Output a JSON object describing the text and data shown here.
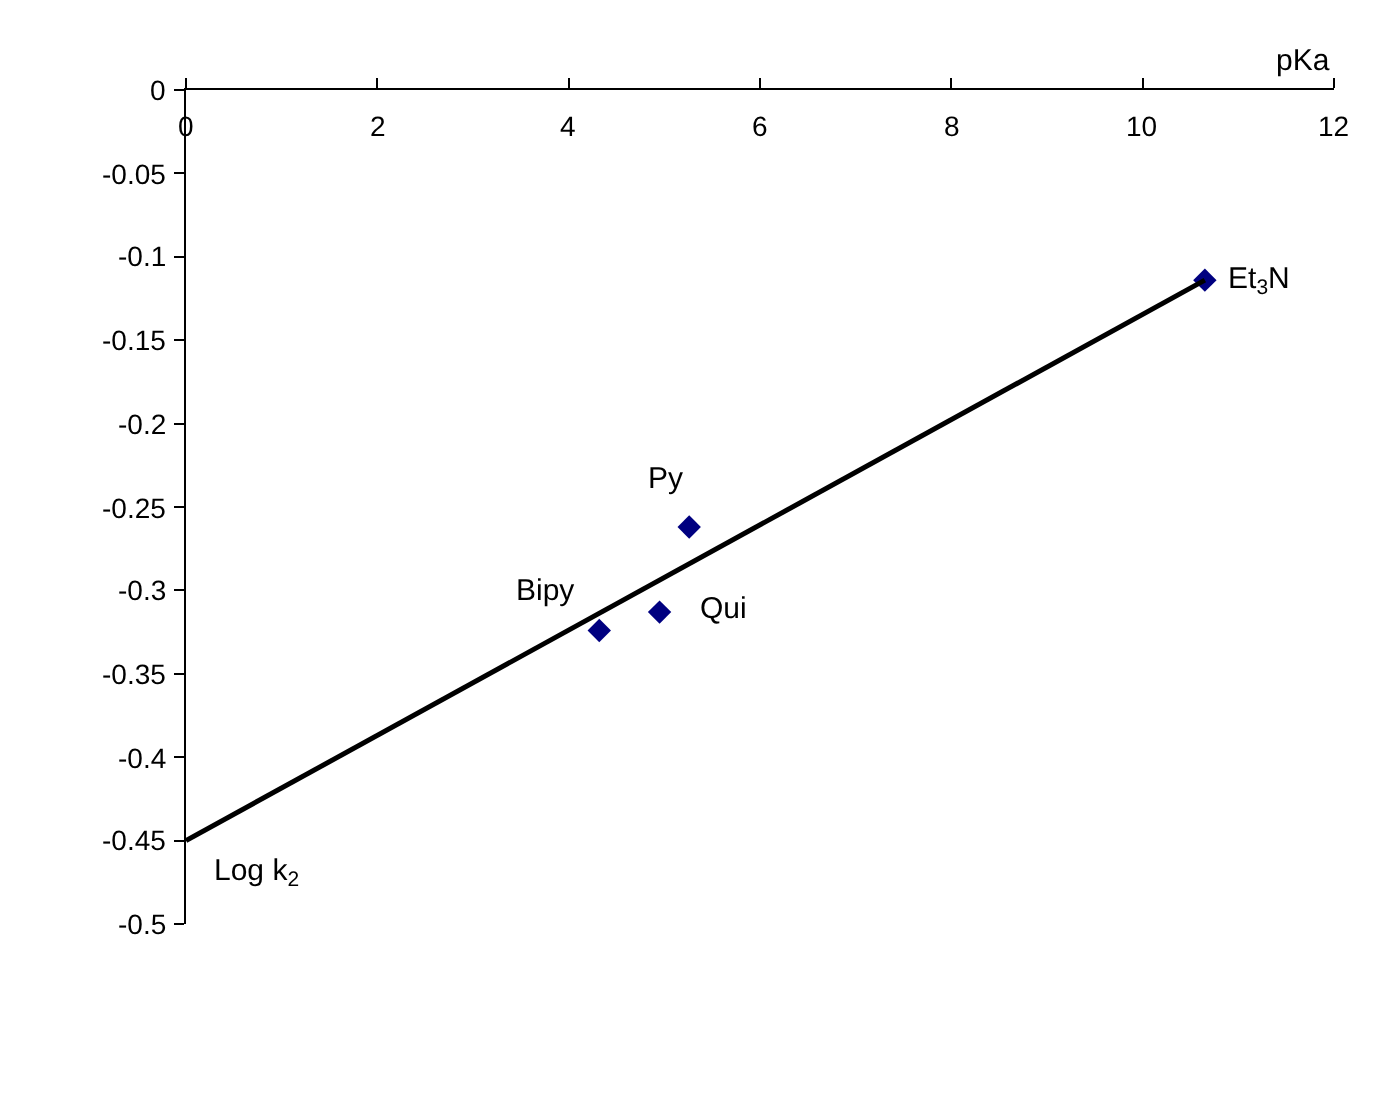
{
  "chart_data": {
    "type": "scatter",
    "xlabel": "pKa",
    "ylabel": "Log k$_{2}$",
    "xlim": [
      0,
      12
    ],
    "xticks": [
      0,
      2,
      4,
      6,
      8,
      10,
      12
    ],
    "ylim": [
      -0.5,
      0
    ],
    "yticks": [
      0,
      -0.05,
      -0.1,
      -0.15,
      -0.2,
      -0.25,
      -0.3,
      -0.35,
      -0.4,
      -0.45,
      -0.5
    ],
    "grid": false,
    "marker": "diamond",
    "series": [
      {
        "color": "#000080",
        "x": [
          10.65,
          5.26,
          4.95,
          4.32
        ],
        "values": [
          -0.114,
          -0.262,
          -0.313,
          -0.324
        ]
      },
      {
        "type": "line",
        "color": "#000000",
        "x": [
          0,
          10.65
        ],
        "values": [
          -0.45,
          -0.114
        ],
        "marker": "none",
        "line_style": "solid"
      }
    ],
    "annotations": [
      {
        "text": "Et$_{3}$N",
        "x": 10.65,
        "y": -0.114
      },
      {
        "text": "Py",
        "x": 5.26,
        "y": -0.262
      },
      {
        "text": "Qui",
        "x": 4.95,
        "y": -0.313
      },
      {
        "text": "Bipy",
        "x": 4.32,
        "y": -0.324
      }
    ]
  }
}
